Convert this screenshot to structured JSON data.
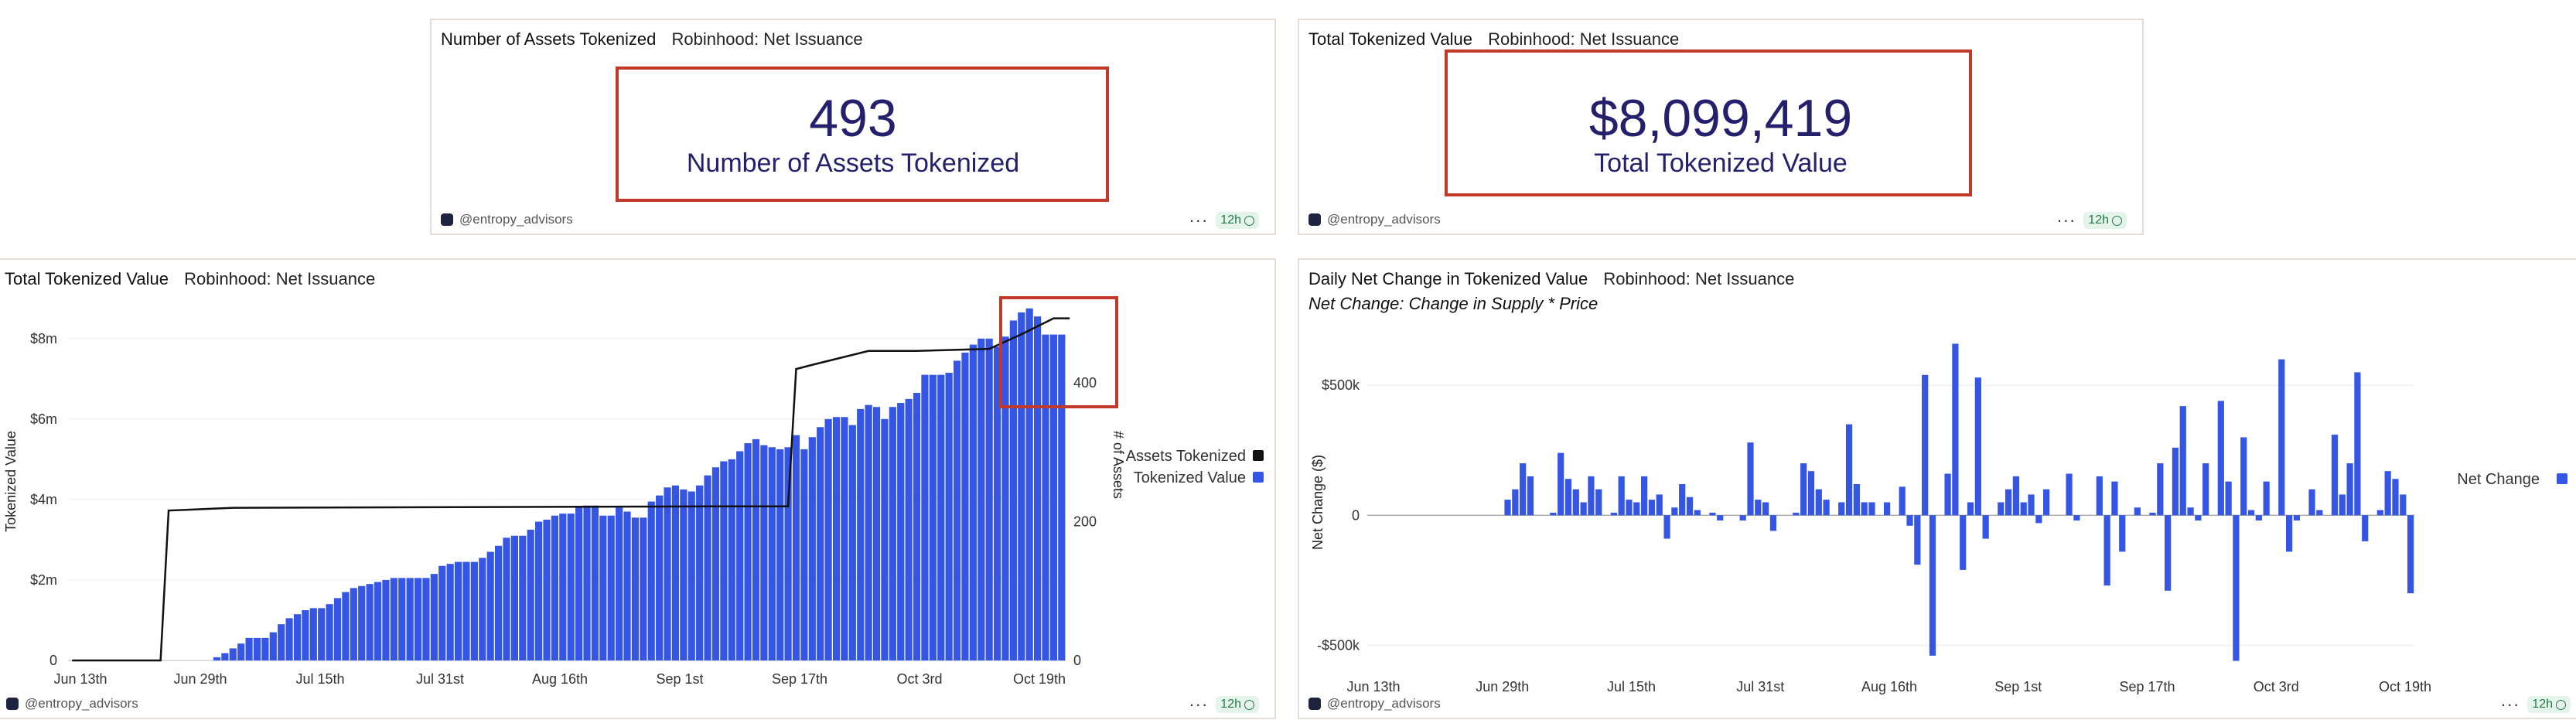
{
  "panels": {
    "assets_counter": {
      "title": "Number of Assets Tokenized",
      "subtitle": "Robinhood: Net Issuance",
      "value": "493",
      "label": "Number of Assets Tokenized",
      "footer": "@entropy_advisors",
      "refresh": "12h"
    },
    "value_counter": {
      "title": "Total Tokenized Value",
      "subtitle": "Robinhood: Net Issuance",
      "value": "$8,099,419",
      "label": "Total Tokenized Value",
      "footer": "@entropy_advisors",
      "refresh": "12h"
    },
    "value_chart": {
      "title": "Total Tokenized Value",
      "subtitle": "Robinhood: Net Issuance",
      "footer": "@entropy_advisors",
      "refresh": "12h"
    },
    "net_chart": {
      "title": "Daily Net Change in Tokenized Value",
      "subtitle": "Robinhood: Net Issuance",
      "description": "Net Change: Change in Supply * Price",
      "footer": "@entropy_advisors",
      "refresh": "12h"
    }
  },
  "colors": {
    "bar": "#3556e4",
    "line": "#111111",
    "highlight": "#c0392b",
    "counter_text": "#25206b"
  },
  "chart_data": [
    {
      "type": "bar",
      "title": "Total Tokenized Value",
      "xlabel": "",
      "ylabel": "Tokenized Value",
      "y2label": "# of Assets",
      "x_ticks": [
        "Jun 13th",
        "Jun 29th",
        "Jul 15th",
        "Jul 31st",
        "Aug 16th",
        "Sep 1st",
        "Sep 17th",
        "Oct 3rd",
        "Oct 19th"
      ],
      "x_start": "Jun 13th",
      "y_ticks": [
        "0",
        "$2m",
        "$4m",
        "$6m",
        "$8m"
      ],
      "y2_ticks": [
        "0",
        "200",
        "400"
      ],
      "ylim": [
        0,
        8900000
      ],
      "y2lim": [
        0,
        516
      ],
      "legend": [
        "Assets Tokenized",
        "Tokenized Value"
      ],
      "series": [
        {
          "name": "Tokenized Value",
          "kind": "bar",
          "values": [
            0,
            0,
            0,
            0,
            0,
            0,
            0,
            0,
            0,
            0,
            0,
            0,
            0,
            0,
            0,
            0,
            0,
            0,
            80000,
            180000,
            300000,
            420000,
            560000,
            560000,
            560000,
            700000,
            900000,
            1050000,
            1150000,
            1250000,
            1300000,
            1300000,
            1400000,
            1550000,
            1700000,
            1800000,
            1850000,
            1900000,
            1950000,
            2000000,
            2050000,
            2050000,
            2050000,
            2050000,
            2050000,
            2150000,
            2350000,
            2400000,
            2450000,
            2450000,
            2450000,
            2550000,
            2700000,
            2850000,
            3050000,
            3100000,
            3100000,
            3250000,
            3450000,
            3500000,
            3600000,
            3650000,
            3650000,
            3800000,
            3850000,
            3850000,
            3600000,
            3600000,
            3800000,
            3700000,
            3550000,
            3550000,
            3950000,
            4100000,
            4300000,
            4350000,
            4250000,
            4200000,
            4350000,
            4600000,
            4800000,
            4950000,
            5000000,
            5200000,
            5400000,
            5500000,
            5350000,
            5300000,
            5250000,
            5300000,
            5600000,
            5250000,
            5550000,
            5800000,
            6000000,
            6050000,
            6050000,
            5850000,
            6250000,
            6350000,
            6300000,
            6000000,
            6300000,
            6400000,
            6500000,
            6650000,
            7100000,
            7100000,
            7100000,
            7150000,
            7450000,
            7650000,
            7850000,
            8000000,
            8000000,
            7800000,
            8050000,
            8450000,
            8650000,
            8750000,
            8550000,
            8100000,
            8100000,
            8100000
          ]
        },
        {
          "name": "Assets Tokenized",
          "kind": "line",
          "points": [
            [
              0,
              0
            ],
            [
              11,
              0
            ],
            [
              12,
              216
            ],
            [
              20,
              220
            ],
            [
              80,
              222
            ],
            [
              89,
              222
            ],
            [
              90,
              420
            ],
            [
              92,
              426
            ],
            [
              99,
              446
            ],
            [
              105,
              446
            ],
            [
              114,
              449
            ],
            [
              118,
              470
            ],
            [
              122,
              493
            ],
            [
              124,
              493
            ]
          ]
        }
      ]
    },
    {
      "type": "bar",
      "title": "Daily Net Change in Tokenized Value",
      "xlabel": "",
      "ylabel": "Net Change ($)",
      "x_ticks": [
        "Jun 13th",
        "Jun 29th",
        "Jul 15th",
        "Jul 31st",
        "Aug 16th",
        "Sep 1st",
        "Sep 17th",
        "Oct 3rd",
        "Oct 19th"
      ],
      "y_ticks": [
        "-$500k",
        "0",
        "$500k"
      ],
      "ylim": [
        -600000,
        700000
      ],
      "legend": [
        "Net Change"
      ],
      "series": [
        {
          "name": "Net Change",
          "values": [
            0,
            0,
            0,
            0,
            0,
            0,
            0,
            0,
            0,
            0,
            0,
            0,
            0,
            0,
            0,
            0,
            0,
            0,
            60000,
            100000,
            200000,
            150000,
            0,
            0,
            10000,
            240000,
            140000,
            100000,
            50000,
            150000,
            100000,
            0,
            10000,
            150000,
            60000,
            50000,
            150000,
            60000,
            80000,
            -90000,
            30000,
            120000,
            70000,
            20000,
            0,
            10000,
            -20000,
            0,
            0,
            -20000,
            280000,
            60000,
            50000,
            -60000,
            0,
            0,
            10000,
            200000,
            170000,
            100000,
            60000,
            0,
            50000,
            350000,
            120000,
            50000,
            50000,
            0,
            50000,
            0,
            110000,
            -40000,
            -190000,
            540000,
            -540000,
            0,
            160000,
            660000,
            -210000,
            50000,
            530000,
            -90000,
            0,
            50000,
            100000,
            150000,
            50000,
            80000,
            -30000,
            100000,
            0,
            0,
            160000,
            -20000,
            0,
            0,
            150000,
            -270000,
            130000,
            -140000,
            0,
            30000,
            0,
            10000,
            200000,
            -290000,
            260000,
            420000,
            30000,
            -20000,
            200000,
            0,
            440000,
            130000,
            -560000,
            300000,
            20000,
            -20000,
            130000,
            0,
            600000,
            -140000,
            -20000,
            0,
            100000,
            20000,
            0,
            310000,
            80000,
            200000,
            550000,
            -100000,
            0,
            20000,
            170000,
            140000,
            80000,
            -300000
          ]
        }
      ]
    }
  ]
}
